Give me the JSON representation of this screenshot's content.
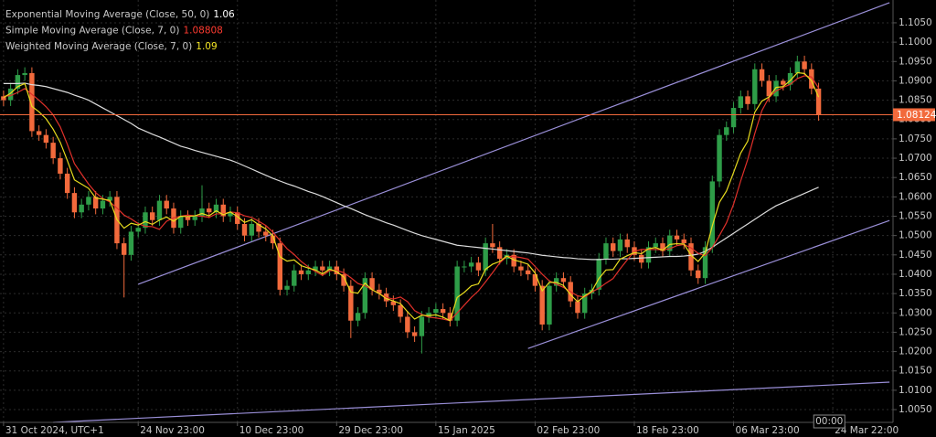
{
  "chart_data": {
    "type": "candlestick",
    "up_color": "#2e9d48",
    "down_color": "#f26a3c",
    "grid": true,
    "xlim": [
      -0.5,
      125.5
    ],
    "ylim": [
      1.0017,
      1.1109
    ],
    "xticks": [
      {
        "value": 0,
        "label": "31 Oct 2024, UTC+1"
      },
      {
        "value": 19,
        "label": "24 Nov 23:00"
      },
      {
        "value": 33,
        "label": "10 Dec 23:00"
      },
      {
        "value": 47,
        "label": "29 Dec 23:00"
      },
      {
        "value": 61,
        "label": "15 Jan 2025"
      },
      {
        "value": 75,
        "label": "02 Feb 23:00"
      },
      {
        "value": 89,
        "label": "18 Feb 23:00"
      },
      {
        "value": 103,
        "label": "06 Mar 23:00"
      },
      {
        "value": 117,
        "label": "24 Mar 22:00"
      }
    ],
    "yticks": [
      {
        "value": 1.005,
        "label": "1.0050"
      },
      {
        "value": 1.01,
        "label": "1.0100"
      },
      {
        "value": 1.015,
        "label": "1.0150"
      },
      {
        "value": 1.02,
        "label": "1.0200"
      },
      {
        "value": 1.025,
        "label": "1.0250"
      },
      {
        "value": 1.03,
        "label": "1.0300"
      },
      {
        "value": 1.035,
        "label": "1.0350"
      },
      {
        "value": 1.04,
        "label": "1.0400"
      },
      {
        "value": 1.045,
        "label": "1.0450"
      },
      {
        "value": 1.05,
        "label": "1.0500"
      },
      {
        "value": 1.055,
        "label": "1.0550"
      },
      {
        "value": 1.06,
        "label": "1.0600"
      },
      {
        "value": 1.065,
        "label": "1.0650"
      },
      {
        "value": 1.07,
        "label": "1.0700"
      },
      {
        "value": 1.075,
        "label": "1.0750"
      },
      {
        "value": 1.08,
        "label": "1.0800"
      },
      {
        "value": 1.085,
        "label": "1.0850"
      },
      {
        "value": 1.09,
        "label": "1.0900"
      },
      {
        "value": 1.095,
        "label": "1.0950"
      },
      {
        "value": 1.1,
        "label": "1.1000"
      },
      {
        "value": 1.105,
        "label": "1.1050"
      }
    ],
    "last_price": 1.08124,
    "last_price_color": "#f26a3c",
    "time_marker": "00:00",
    "candles": {
      "open": [
        1.086,
        1.085,
        1.088,
        1.0915,
        1.092,
        1.077,
        1.076,
        1.074,
        1.07,
        1.066,
        1.061,
        1.056,
        1.058,
        1.06,
        1.057,
        1.059,
        1.06,
        1.048,
        1.045,
        1.051,
        1.052,
        1.056,
        1.054,
        1.059,
        1.057,
        1.052,
        1.055,
        1.054,
        1.055,
        1.057,
        1.056,
        1.058,
        1.055,
        1.056,
        1.053,
        1.05,
        1.053,
        1.051,
        1.05,
        1.048,
        1.036,
        1.037,
        1.041,
        1.04,
        1.041,
        1.042,
        1.041,
        1.042,
        1.04,
        1.037,
        1.028,
        1.03,
        1.039,
        1.036,
        1.035,
        1.033,
        1.032,
        1.029,
        1.025,
        1.024,
        1.029,
        1.03,
        1.031,
        1.03,
        1.028,
        1.042,
        1.042,
        1.043,
        1.041,
        1.048,
        1.047,
        1.044,
        1.045,
        1.042,
        1.041,
        1.04,
        1.037,
        1.027,
        1.037,
        1.039,
        1.038,
        1.033,
        1.03,
        1.035,
        1.036,
        1.044,
        1.048,
        1.046,
        1.049,
        1.047,
        1.045,
        1.043,
        1.047,
        1.048,
        1.046,
        1.05,
        1.049,
        1.048,
        1.041,
        1.039,
        1.047,
        1.064,
        1.076,
        1.078,
        1.083,
        1.086,
        1.084,
        1.093,
        1.09,
        1.086,
        1.09,
        1.089,
        1.092,
        1.095,
        1.093,
        1.088
      ],
      "high": [
        1.0875,
        1.0895,
        1.093,
        1.0935,
        1.0935,
        1.0785,
        1.0775,
        1.0755,
        1.0715,
        1.0675,
        1.0625,
        1.0595,
        1.0615,
        1.0615,
        1.0605,
        1.0615,
        1.0615,
        1.0495,
        1.0525,
        1.0535,
        1.0575,
        1.0575,
        1.0605,
        1.0605,
        1.0585,
        1.0565,
        1.0565,
        1.0565,
        1.063,
        1.0585,
        1.0595,
        1.0595,
        1.0575,
        1.0575,
        1.0545,
        1.0545,
        1.0545,
        1.0525,
        1.0515,
        1.0495,
        1.0385,
        1.0425,
        1.0425,
        1.0425,
        1.0435,
        1.0435,
        1.0435,
        1.0435,
        1.0415,
        1.0385,
        1.0315,
        1.0405,
        1.0405,
        1.0375,
        1.0365,
        1.0345,
        1.0335,
        1.0305,
        1.0265,
        1.0305,
        1.0315,
        1.0325,
        1.0325,
        1.0315,
        1.0435,
        1.0435,
        1.0445,
        1.0445,
        1.0495,
        1.053,
        1.0485,
        1.0465,
        1.0465,
        1.0435,
        1.0425,
        1.0415,
        1.0385,
        1.0385,
        1.0405,
        1.0405,
        1.0395,
        1.0345,
        1.0365,
        1.0375,
        1.0455,
        1.0495,
        1.0495,
        1.0505,
        1.0505,
        1.0485,
        1.0465,
        1.0485,
        1.0495,
        1.0495,
        1.0515,
        1.0515,
        1.0505,
        1.0495,
        1.0425,
        1.0485,
        1.0655,
        1.0775,
        1.0795,
        1.0845,
        1.0875,
        1.0875,
        1.0945,
        1.0945,
        1.0915,
        1.0915,
        1.0905,
        1.0935,
        1.0965,
        1.0965,
        1.0945,
        1.0895
      ],
      "low": [
        1.0835,
        1.0835,
        1.0865,
        1.09,
        1.0755,
        1.0745,
        1.0725,
        1.0685,
        1.0645,
        1.0595,
        1.0545,
        1.0545,
        1.0565,
        1.0555,
        1.0555,
        1.0575,
        1.0465,
        1.034,
        1.0435,
        1.0495,
        1.0505,
        1.0525,
        1.0525,
        1.0555,
        1.0505,
        1.0505,
        1.0525,
        1.0525,
        1.0535,
        1.0545,
        1.0545,
        1.0535,
        1.0535,
        1.0515,
        1.0485,
        1.0485,
        1.0495,
        1.0485,
        1.0465,
        1.0345,
        1.0345,
        1.0355,
        1.0385,
        1.0385,
        1.0395,
        1.0395,
        1.0395,
        1.0385,
        1.0355,
        1.0235,
        1.0265,
        1.0285,
        1.0345,
        1.0335,
        1.0315,
        1.0305,
        1.0275,
        1.0235,
        1.0225,
        1.0195,
        1.0275,
        1.0285,
        1.0285,
        1.0265,
        1.0265,
        1.0405,
        1.0405,
        1.0395,
        1.0395,
        1.0455,
        1.0425,
        1.0425,
        1.0405,
        1.0395,
        1.0385,
        1.0355,
        1.0255,
        1.0255,
        1.0355,
        1.0365,
        1.0315,
        1.0285,
        1.0285,
        1.0335,
        1.0345,
        1.0425,
        1.0445,
        1.0445,
        1.0455,
        1.0435,
        1.0415,
        1.0415,
        1.0455,
        1.0445,
        1.0445,
        1.0475,
        1.0465,
        1.0395,
        1.0375,
        1.0375,
        1.0455,
        1.0625,
        1.0745,
        1.0765,
        1.0815,
        1.0825,
        1.0825,
        1.0885,
        1.0845,
        1.0845,
        1.0875,
        1.0875,
        1.0905,
        1.0915,
        1.0865,
        1.0797
      ],
      "close": [
        1.085,
        1.088,
        1.0915,
        1.092,
        1.077,
        1.076,
        1.074,
        1.07,
        1.066,
        1.061,
        1.056,
        1.058,
        1.06,
        1.057,
        1.059,
        1.06,
        1.048,
        1.045,
        1.051,
        1.052,
        1.056,
        1.054,
        1.059,
        1.057,
        1.052,
        1.055,
        1.054,
        1.055,
        1.057,
        1.056,
        1.058,
        1.055,
        1.056,
        1.053,
        1.05,
        1.053,
        1.051,
        1.05,
        1.048,
        1.036,
        1.037,
        1.041,
        1.04,
        1.041,
        1.042,
        1.041,
        1.042,
        1.04,
        1.037,
        1.028,
        1.03,
        1.039,
        1.036,
        1.035,
        1.033,
        1.032,
        1.029,
        1.025,
        1.024,
        1.029,
        1.03,
        1.031,
        1.03,
        1.028,
        1.042,
        1.042,
        1.043,
        1.041,
        1.048,
        1.047,
        1.044,
        1.045,
        1.042,
        1.041,
        1.04,
        1.037,
        1.027,
        1.037,
        1.039,
        1.038,
        1.033,
        1.03,
        1.035,
        1.036,
        1.044,
        1.048,
        1.046,
        1.049,
        1.047,
        1.045,
        1.043,
        1.047,
        1.048,
        1.046,
        1.05,
        1.049,
        1.048,
        1.041,
        1.039,
        1.047,
        1.064,
        1.076,
        1.078,
        1.083,
        1.086,
        1.084,
        1.093,
        1.09,
        1.086,
        1.09,
        1.089,
        1.092,
        1.095,
        1.093,
        1.088,
        1.0812
      ]
    },
    "series": [
      {
        "name": "Exponential Moving Average (Close, 50, 0)",
        "current": "1.06",
        "color": "#dcdcdc",
        "label_color": "#ffffff",
        "values": [
          1.0893,
          1.0893,
          1.0893,
          1.0894,
          1.089,
          1.0888,
          1.0885,
          1.088,
          1.0875,
          1.087,
          1.0863,
          1.0857,
          1.085,
          1.084,
          1.083,
          1.082,
          1.081,
          1.08,
          1.079,
          1.0778,
          1.077,
          1.0762,
          1.0755,
          1.0747,
          1.0739,
          1.0731,
          1.0726,
          1.072,
          1.0715,
          1.071,
          1.0705,
          1.07,
          1.0695,
          1.0688,
          1.068,
          1.0672,
          1.0664,
          1.0656,
          1.0648,
          1.0641,
          1.0634,
          1.0628,
          1.0621,
          1.0614,
          1.0608,
          1.0601,
          1.0593,
          1.0585,
          1.0577,
          1.057,
          1.0562,
          1.0554,
          1.0547,
          1.054,
          1.0533,
          1.0527,
          1.052,
          1.0513,
          1.0506,
          1.05,
          1.0495,
          1.049,
          1.0485,
          1.048,
          1.0475,
          1.0473,
          1.0471,
          1.0469,
          1.0467,
          1.0465,
          1.0463,
          1.0461,
          1.0459,
          1.0457,
          1.0455,
          1.0452,
          1.0449,
          1.0447,
          1.0445,
          1.0443,
          1.0442,
          1.044,
          1.0439,
          1.0438,
          1.0438,
          1.0439,
          1.0439,
          1.044,
          1.044,
          1.0441,
          1.0442,
          1.0443,
          1.0444,
          1.0445,
          1.0446,
          1.0446,
          1.0447,
          1.0449,
          1.0452,
          1.0459,
          1.047,
          1.0482,
          1.0494,
          1.0506,
          1.0518,
          1.053,
          1.0542,
          1.0554,
          1.0566,
          1.0577,
          1.0585,
          1.0593,
          1.0601,
          1.0609,
          1.0617,
          1.0625
        ]
      },
      {
        "name": "Simple Moving Average (Close, 7, 0)",
        "current": "1.08808",
        "color": "#e0302a",
        "label_color": "#ff3b30",
        "values": [
          1.086,
          1.0862,
          1.087,
          1.088,
          1.0865,
          1.085,
          1.0833,
          1.0812,
          1.0781,
          1.0736,
          1.0686,
          1.0659,
          1.0633,
          1.0611,
          1.0596,
          1.0587,
          1.0571,
          1.0553,
          1.0543,
          1.0531,
          1.0524,
          1.0523,
          1.0516,
          1.0537,
          1.0546,
          1.055,
          1.0553,
          1.0551,
          1.055,
          1.0547,
          1.0556,
          1.0556,
          1.0561,
          1.0559,
          1.0551,
          1.0547,
          1.0537,
          1.0526,
          1.0509,
          1.0487,
          1.0466,
          1.0451,
          1.0433,
          1.0419,
          1.0407,
          1.0397,
          1.0409,
          1.041,
          1.0404,
          1.0391,
          1.0376,
          1.037,
          1.036,
          1.035,
          1.034,
          1.0336,
          1.0341,
          1.0329,
          1.0306,
          1.0296,
          1.0289,
          1.0287,
          1.0284,
          1.028,
          1.03,
          1.032,
          1.034,
          1.0357,
          1.038,
          1.0404,
          1.0429,
          1.0446,
          1.0446,
          1.0443,
          1.0439,
          1.042,
          1.04,
          1.0383,
          1.0374,
          1.0366,
          1.0355,
          1.0344,
          1.0341,
          1.0354,
          1.0364,
          1.0377,
          1.0389,
          1.0414,
          1.0437,
          1.0459,
          1.0464,
          1.0464,
          1.0464,
          1.0463,
          1.0466,
          1.0474,
          1.0477,
          1.0468,
          1.0454,
          1.0448,
          1.0469,
          1.05,
          1.0533,
          1.0581,
          1.0641,
          1.0697,
          1.0764,
          1.0823,
          1.0857,
          1.0874,
          1.0883,
          1.0891,
          1.0906,
          1.0913,
          1.091,
          1.0881
        ]
      },
      {
        "name": "Weighted Moving Average (Close, 7, 0)",
        "current": "1.09",
        "color": "#e8dc1e",
        "label_color": "#f5e625",
        "values": [
          1.0857,
          1.0868,
          1.0885,
          1.0893,
          1.0834,
          1.082,
          1.0802,
          1.0775,
          1.0741,
          1.0694,
          1.0644,
          1.0633,
          1.0622,
          1.0597,
          1.0594,
          1.0591,
          1.0541,
          1.0519,
          1.0532,
          1.0527,
          1.0536,
          1.0529,
          1.054,
          1.0548,
          1.0537,
          1.055,
          1.0549,
          1.0551,
          1.0557,
          1.0551,
          1.0564,
          1.0554,
          1.0561,
          1.0549,
          1.0534,
          1.0541,
          1.0528,
          1.0517,
          1.0499,
          1.0445,
          1.0434,
          1.0437,
          1.0422,
          1.0416,
          1.0411,
          1.0401,
          1.0413,
          1.0407,
          1.0393,
          1.0354,
          1.0351,
          1.0377,
          1.036,
          1.035,
          1.0337,
          1.0331,
          1.0324,
          1.0303,
          1.0284,
          1.0294,
          1.0293,
          1.0295,
          1.0289,
          1.028,
          1.034,
          1.0353,
          1.037,
          1.0375,
          1.0413,
          1.0426,
          1.0433,
          1.0447,
          1.0437,
          1.0432,
          1.0426,
          1.0403,
          1.0357,
          1.0379,
          1.0379,
          1.0371,
          1.0347,
          1.0329,
          1.0344,
          1.0356,
          1.0389,
          1.0411,
          1.0412,
          1.0439,
          1.0448,
          1.0456,
          1.0453,
          1.0466,
          1.0469,
          1.0462,
          1.0477,
          1.0479,
          1.0478,
          1.0449,
          1.0433,
          1.0455,
          1.0525,
          1.0586,
          1.0615,
          1.0663,
          1.0713,
          1.0744,
          1.0819,
          1.0848,
          1.0858,
          1.0883,
          1.0885,
          1.0901,
          1.0921,
          1.0919,
          1.09,
          1.0858
        ]
      }
    ],
    "trendline_color": "#9a8fd8",
    "trendlines": [
      {
        "x": [
          19,
          125
        ],
        "y": [
          1.0374,
          1.1102
        ]
      },
      {
        "x": [
          74,
          125
        ],
        "y": [
          1.0208,
          1.0539
        ]
      },
      {
        "x": [
          7,
          125
        ],
        "y": [
          1.0017,
          1.0121
        ]
      }
    ]
  }
}
